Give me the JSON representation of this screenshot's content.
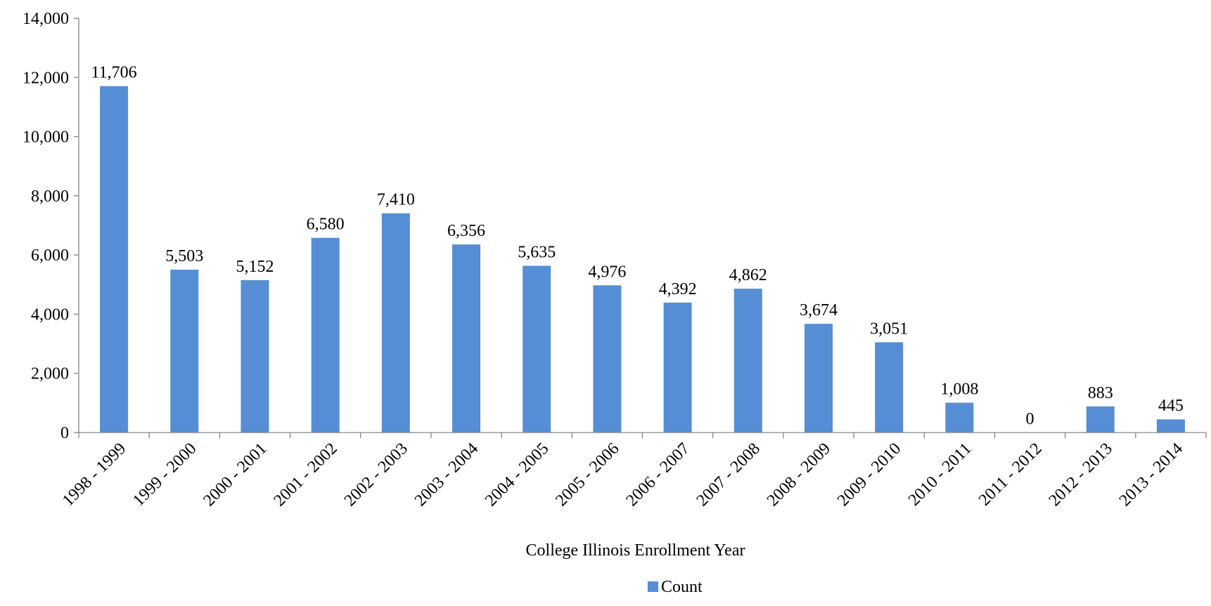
{
  "chart_data": {
    "type": "bar",
    "title": "",
    "xlabel": "College Illinois Enrollment Year",
    "ylabel": "",
    "ylim": [
      0,
      14000
    ],
    "yticks": [
      0,
      2000,
      4000,
      6000,
      8000,
      10000,
      12000,
      14000
    ],
    "ytick_labels": [
      "0",
      "2,000",
      "4,000",
      "6,000",
      "8,000",
      "10,000",
      "12,000",
      "14,000"
    ],
    "categories": [
      "1998 - 1999",
      "1999 - 2000",
      "2000 - 2001",
      "2001 - 2002",
      "2002 - 2003",
      "2003 - 2004",
      "2004 - 2005",
      "2005 - 2006",
      "2006 - 2007",
      "2007 - 2008",
      "2008 - 2009",
      "2009 - 2010",
      "2010 - 2011",
      "2011 - 2012",
      "2012 - 2013",
      "2013 - 2014"
    ],
    "series": [
      {
        "name": "Count",
        "color": "#558ed5",
        "values": [
          11706,
          5503,
          5152,
          6580,
          7410,
          6356,
          5635,
          4976,
          4392,
          4862,
          3674,
          3051,
          1008,
          0,
          883,
          445
        ],
        "data_labels": [
          "11,706",
          "5,503",
          "5,152",
          "6,580",
          "7,410",
          "6,356",
          "5,635",
          "4,976",
          "4,392",
          "4,862",
          "3,674",
          "3,051",
          "1,008",
          "0",
          "883",
          "445"
        ]
      }
    ],
    "grid": false,
    "legend": "bottom-center"
  }
}
